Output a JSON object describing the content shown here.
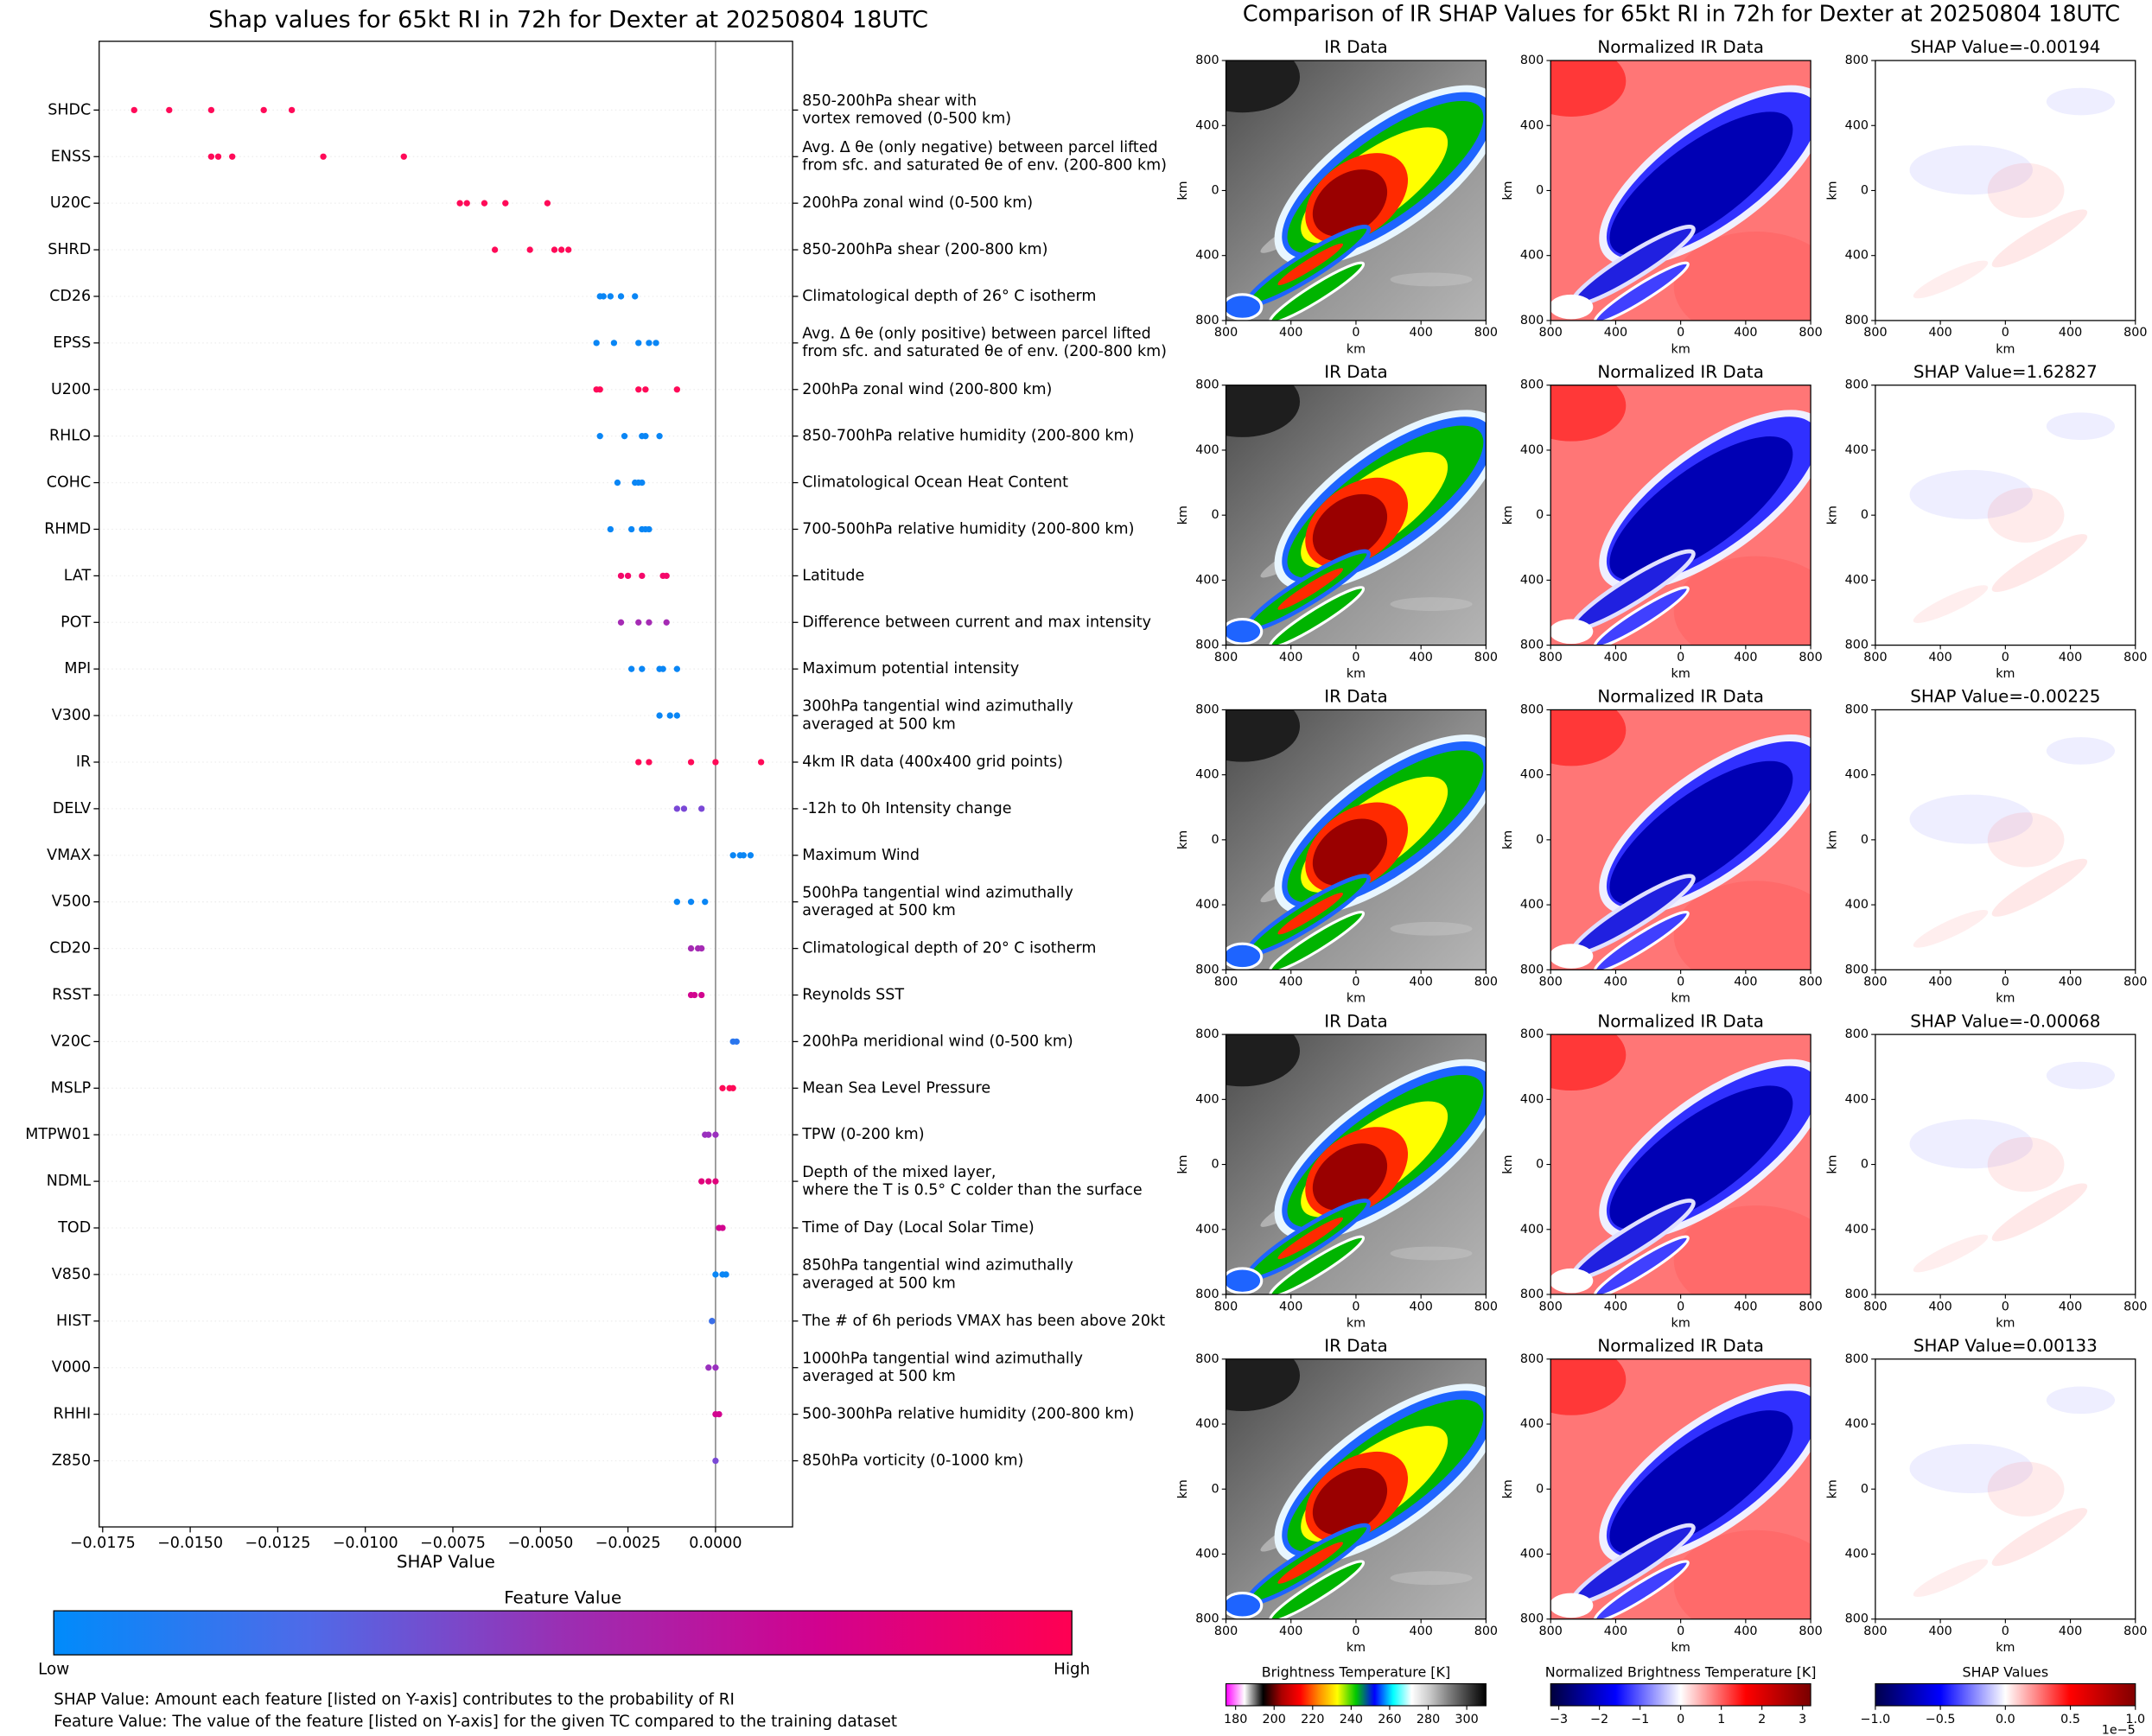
{
  "chart_data": [
    {
      "type": "beeswarm",
      "title": "Shap values for 65kt RI in 72h for Dexter at 20250804 18UTC",
      "xlabel": "SHAP Value",
      "xlim": [
        -0.0176,
        0.0022
      ],
      "xticks": [
        {
          "value": -0.0175,
          "label": "−0.0175"
        },
        {
          "value": -0.015,
          "label": "−0.0150"
        },
        {
          "value": -0.0125,
          "label": "−0.0125"
        },
        {
          "value": -0.01,
          "label": "−0.0100"
        },
        {
          "value": -0.0075,
          "label": "−0.0075"
        },
        {
          "value": -0.005,
          "label": "−0.0050"
        },
        {
          "value": -0.0025,
          "label": "−0.0025"
        },
        {
          "value": 0,
          "label": "0.0000"
        }
      ],
      "series": [
        {
          "name": "SHDC",
          "description": [
            "850-200hPa shear with",
            "vortex removed (0-500 km)"
          ],
          "color": "#ff0a58",
          "values": [
            -0.0166,
            -0.0156,
            -0.0144,
            -0.0129,
            -0.0121
          ]
        },
        {
          "name": "ENSS",
          "description": [
            "Avg. Δ θe (only negative) between parcel lifted",
            "from sfc. and saturated θe of env. (200-800 km)"
          ],
          "color": "#ff0a58",
          "values": [
            -0.0144,
            -0.0142,
            -0.0138,
            -0.0112,
            -0.0089
          ]
        },
        {
          "name": "U20C",
          "description": [
            "200hPa zonal wind (0-500 km)"
          ],
          "color": "#ff0a58",
          "values": [
            -0.0073,
            -0.0071,
            -0.0066,
            -0.006,
            -0.0048
          ]
        },
        {
          "name": "SHRD",
          "description": [
            "850-200hPa shear (200-800 km)"
          ],
          "color": "#ff0a58",
          "values": [
            -0.0063,
            -0.0053,
            -0.0046,
            -0.0044,
            -0.0042
          ]
        },
        {
          "name": "CD26",
          "description": [
            "Climatological depth of 26° C isotherm"
          ],
          "color": "#0a86f5",
          "values": [
            -0.0033,
            -0.0032,
            -0.003,
            -0.0027,
            -0.0023
          ]
        },
        {
          "name": "EPSS",
          "description": [
            "Avg. Δ θe (only positive) between parcel lifted",
            "from sfc. and saturated θe of env. (200-800 km)"
          ],
          "color": "#0a86f5",
          "values": [
            -0.0034,
            -0.0029,
            -0.0022,
            -0.0019,
            -0.0017
          ]
        },
        {
          "name": "U200",
          "description": [
            "200hPa zonal wind (200-800 km)"
          ],
          "color": "#ff0a58",
          "values": [
            -0.0034,
            -0.0033,
            -0.0022,
            -0.002,
            -0.0011
          ]
        },
        {
          "name": "RHLO",
          "description": [
            "850-700hPa relative humidity (200-800 km)"
          ],
          "color": "#0a86f5",
          "values": [
            -0.0033,
            -0.0026,
            -0.0021,
            -0.002,
            -0.0016
          ]
        },
        {
          "name": "COHC",
          "description": [
            "Climatological Ocean Heat Content"
          ],
          "color": "#0a86f5",
          "values": [
            -0.0028,
            -0.0023,
            -0.0022,
            -0.0021
          ]
        },
        {
          "name": "RHMD",
          "description": [
            "700-500hPa relative humidity (200-800 km)"
          ],
          "color": "#0a86f5",
          "values": [
            -0.003,
            -0.0024,
            -0.0021,
            -0.002,
            -0.0019
          ]
        },
        {
          "name": "LAT",
          "description": [
            "Latitude"
          ],
          "color": "#f5086a",
          "values": [
            -0.0027,
            -0.0025,
            -0.0021,
            -0.0015,
            -0.0014
          ]
        },
        {
          "name": "POT",
          "description": [
            "Difference between current and max intensity"
          ],
          "color": "#a52bb4",
          "values": [
            -0.0027,
            -0.0022,
            -0.0019,
            -0.0014
          ]
        },
        {
          "name": "MPI",
          "description": [
            "Maximum potential intensity"
          ],
          "color": "#0a86f5",
          "values": [
            -0.0024,
            -0.0021,
            -0.0016,
            -0.0015,
            -0.0011
          ]
        },
        {
          "name": "V300",
          "description": [
            "300hPa tangential wind azimuthally",
            "averaged at 500 km"
          ],
          "color": "#0a86f5",
          "values": [
            -0.0016,
            -0.0013,
            -0.0011
          ]
        },
        {
          "name": "IR",
          "description": [
            "4km IR data (400x400 grid points)"
          ],
          "color": "#ff0a58",
          "values": [
            -0.0022,
            -0.0019,
            -0.0007,
            0.0,
            0.0013
          ]
        },
        {
          "name": "DELV",
          "description": [
            "-12h to 0h Intensity change"
          ],
          "color": "#7a48d6",
          "values": [
            -0.0011,
            -0.0009,
            -0.0004
          ]
        },
        {
          "name": "VMAX",
          "description": [
            "Maximum Wind"
          ],
          "color": "#0a86f5",
          "values": [
            0.0005,
            0.0007,
            0.0008,
            0.001
          ]
        },
        {
          "name": "V500",
          "description": [
            "500hPa tangential wind azimuthally",
            "averaged at 500 km"
          ],
          "color": "#0a86f5",
          "values": [
            -0.0011,
            -0.0007,
            -0.0003
          ]
        },
        {
          "name": "CD20",
          "description": [
            "Climatological depth of 20° C isotherm"
          ],
          "color": "#a52bb4",
          "values": [
            -0.0007,
            -0.0005,
            -0.0004
          ]
        },
        {
          "name": "RSST",
          "description": [
            "Reynolds SST"
          ],
          "color": "#d2048f",
          "values": [
            -0.0007,
            -0.0006,
            -0.0004
          ]
        },
        {
          "name": "V20C",
          "description": [
            "200hPa meridional wind (0-500 km)"
          ],
          "color": "#2a76ee",
          "values": [
            0.0005,
            0.0006
          ]
        },
        {
          "name": "MSLP",
          "description": [
            "Mean Sea Level Pressure"
          ],
          "color": "#ff0a58",
          "values": [
            0.0002,
            0.0004,
            0.0005
          ]
        },
        {
          "name": "MTPW01",
          "description": [
            "TPW (0-200 km)"
          ],
          "color": "#9a30be",
          "values": [
            -0.0003,
            -0.0002,
            0.0
          ]
        },
        {
          "name": "NDML",
          "description": [
            "Depth of the mixed layer,",
            "where the T is 0.5° C colder than the surface"
          ],
          "color": "#e0037c",
          "values": [
            -0.0004,
            -0.0002,
            0.0
          ]
        },
        {
          "name": "TOD",
          "description": [
            "Time of Day (Local Solar Time)"
          ],
          "color": "#d2048f",
          "values": [
            0.0001,
            0.0002
          ]
        },
        {
          "name": "V850",
          "description": [
            "850hPa tangential wind azimuthally",
            "averaged at 500 km"
          ],
          "color": "#0a86f5",
          "values": [
            0.0,
            0.0002,
            0.0003
          ]
        },
        {
          "name": "HIST",
          "description": [
            "The # of 6h periods VMAX has been above 20kt"
          ],
          "color": "#3a6ee8",
          "values": [
            -0.0001,
            -0.0001
          ]
        },
        {
          "name": "V000",
          "description": [
            "1000hPa tangential wind azimuthally",
            "averaged at 500 km"
          ],
          "color": "#9a30be",
          "values": [
            -0.0002,
            0.0
          ]
        },
        {
          "name": "RHHI",
          "description": [
            "500-300hPa relative humidity (200-800 km)"
          ],
          "color": "#d2048f",
          "values": [
            0.0,
            0.0001
          ]
        },
        {
          "name": "Z850",
          "description": [
            "850hPa vorticity (0-1000 km)"
          ],
          "color": "#7a48d6",
          "values": [
            0.0
          ]
        }
      ],
      "colorbar": {
        "title": "Feature Value",
        "low_label": "Low",
        "high_label": "High",
        "colors": [
          "#008bfb",
          "#4f6ae8",
          "#9a2fb3",
          "#d1028f",
          "#ff0052"
        ]
      },
      "annotations": [
        "SHAP Value: Amount each feature [listed on Y-axis] contributes to the probability of RI",
        "Feature Value: The value of the feature [listed on Y-axis] for the given TC compared to the training dataset"
      ]
    },
    {
      "type": "image-grid",
      "title": "Comparison of IR SHAP Values for 65kt RI in 72h for Dexter at 20250804 18UTC",
      "column_titles": [
        "IR Data",
        "Normalized IR Data"
      ],
      "shap_titles": [
        "SHAP Value=-0.00194",
        "SHAP Value=1.62827",
        "SHAP Value=-0.00225",
        "SHAP Value=-0.00068",
        "SHAP Value=0.00133"
      ],
      "xlabel": "km",
      "ylabel": "km",
      "xlim": [
        -800,
        800
      ],
      "ylim": [
        -800,
        800
      ],
      "xticks": [
        {
          "value": -800,
          "label": "800"
        },
        {
          "value": -400,
          "label": "400"
        },
        0,
        400,
        800
      ],
      "yticks": [
        {
          "value": -800,
          "label": "800"
        },
        {
          "value": -400,
          "label": "400"
        },
        0,
        400,
        800
      ],
      "colorbars": [
        {
          "title": "Brightness Temperature [K]",
          "lim": [
            175,
            310
          ],
          "ticks": [
            180,
            200,
            220,
            240,
            260,
            280,
            300
          ],
          "colors": [
            "#ff00ff",
            "#ffffff",
            "#000000",
            "#aa0000",
            "#ff0000",
            "#ff8c00",
            "#ffff00",
            "#00c800",
            "#0000ff",
            "#00ffff",
            "#ffffff",
            "#c8c8c8",
            "#808080",
            "#404040",
            "#000000"
          ]
        },
        {
          "title": "Normalized Brightness Temperature [K]",
          "lim": [
            -3.2,
            3.2
          ],
          "ticks": [
            {
              "value": -3,
              "label": "−3"
            },
            {
              "value": -2,
              "label": "−2"
            },
            {
              "value": -1,
              "label": "−1"
            },
            0,
            1,
            2,
            3
          ],
          "colors": [
            "#00003c",
            "#0000ff",
            "#ffffff",
            "#ff0000",
            "#780000"
          ]
        },
        {
          "title": "SHAP Values",
          "lim": [
            -1,
            1
          ],
          "ticks": [
            {
              "value": -1,
              "label": "−1.0"
            },
            {
              "value": -0.5,
              "label": "−0.5"
            },
            {
              "value": 0,
              "label": "0.0"
            },
            0.5,
            {
              "value": 1,
              "label": "1.0"
            }
          ],
          "offset_label": "1e−5",
          "colors": [
            "#00004c",
            "#0000ff",
            "#ffffff",
            "#ff0000",
            "#800000"
          ]
        }
      ]
    }
  ]
}
